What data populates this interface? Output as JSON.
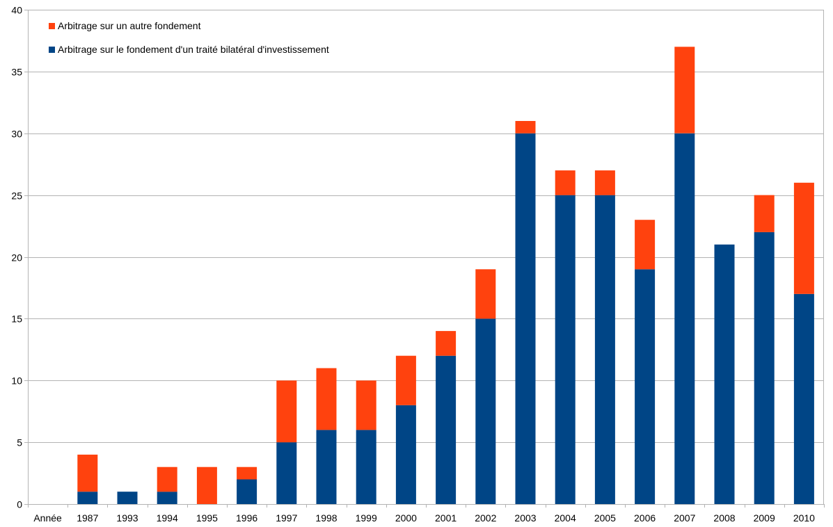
{
  "chart_data": {
    "type": "bar",
    "stacked": true,
    "categories": [
      "Année",
      "1987",
      "1993",
      "1994",
      "1995",
      "1996",
      "1997",
      "1998",
      "1999",
      "2000",
      "2001",
      "2002",
      "2003",
      "2004",
      "2005",
      "2006",
      "2007",
      "2008",
      "2009",
      "2010"
    ],
    "series": [
      {
        "name": "Arbitrage sur le fondement d'un traité bilatéral d'investissement",
        "color": "#004586",
        "values": [
          0,
          1,
          1,
          1,
          0,
          2,
          5,
          6,
          6,
          8,
          12,
          15,
          30,
          25,
          25,
          19,
          30,
          21,
          22,
          17
        ]
      },
      {
        "name": "Arbitrage sur un autre fondement",
        "color": "#ff420e",
        "values": [
          0,
          3,
          0,
          2,
          3,
          1,
          5,
          5,
          4,
          4,
          2,
          4,
          1,
          2,
          2,
          4,
          7,
          0,
          3,
          9
        ]
      }
    ],
    "legend_order": [
      1,
      0
    ],
    "ylim": [
      0,
      40
    ],
    "yticks": [
      0,
      5,
      10,
      15,
      20,
      25,
      30,
      35,
      40
    ],
    "grid": true,
    "legend_position": "top-left"
  }
}
